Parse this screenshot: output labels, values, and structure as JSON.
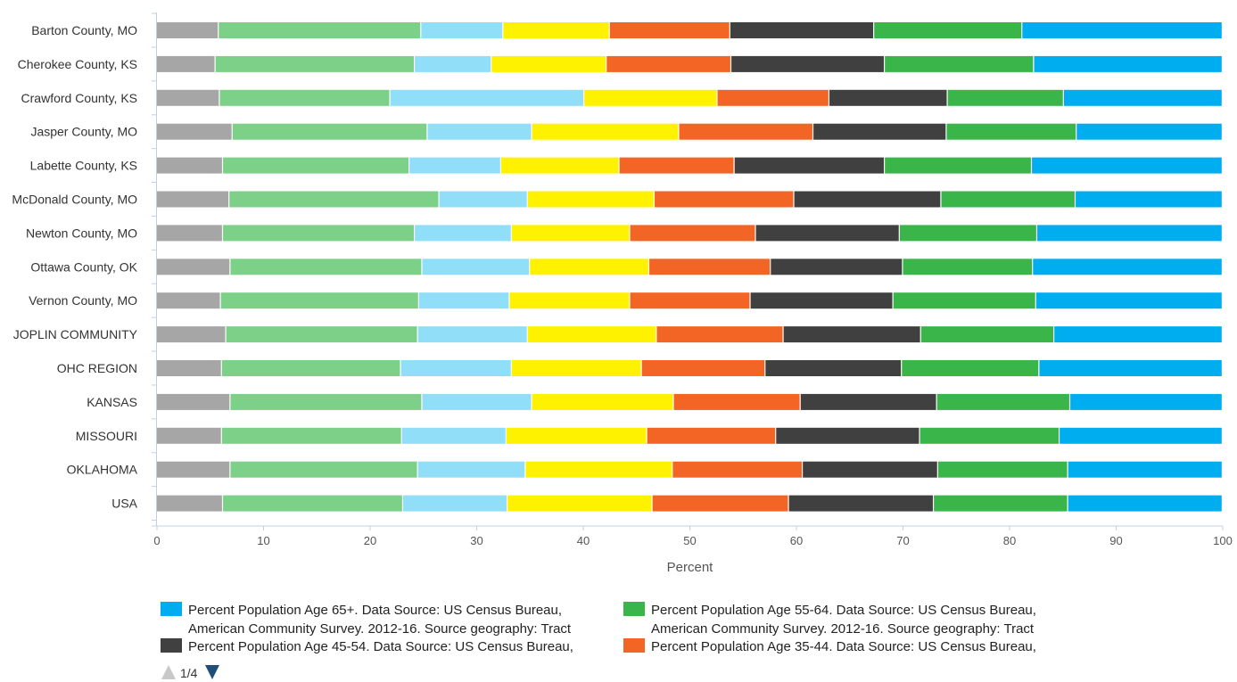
{
  "chart_data": {
    "type": "bar",
    "orientation": "horizontal",
    "stacked": true,
    "xlabel": "Percent",
    "xlim": [
      0,
      100
    ],
    "xticks": [
      "0",
      "10",
      "20",
      "30",
      "40",
      "50",
      "60",
      "70",
      "80",
      "90",
      "100"
    ],
    "grid": false,
    "categories": [
      "Barton County, MO",
      "Cherokee County, KS",
      "Crawford County, KS",
      "Jasper County, MO",
      "Labette County, KS",
      "McDonald County, MO",
      "Newton County, MO",
      "Ottawa County, OK",
      "Vernon County, MO",
      "JOPLIN COMMUNITY",
      "OHC REGION",
      "KANSAS",
      "MISSOURI",
      "OKLAHOMA",
      "USA"
    ],
    "series": [
      {
        "color": "#a6a6a6",
        "values": [
          5.8,
          5.5,
          5.9,
          7.1,
          6.2,
          6.8,
          6.2,
          6.9,
          6.0,
          6.5,
          6.1,
          6.9,
          6.1,
          6.9,
          6.2
        ]
      },
      {
        "color": "#7dd087",
        "values": [
          19.0,
          18.7,
          16.0,
          18.3,
          17.5,
          19.7,
          18.0,
          18.0,
          18.6,
          18.0,
          16.8,
          18.0,
          16.9,
          17.6,
          16.9
        ]
      },
      {
        "color": "#91def8",
        "values": [
          7.7,
          7.2,
          18.2,
          9.8,
          8.6,
          8.3,
          9.1,
          10.1,
          8.5,
          10.3,
          10.4,
          10.3,
          9.8,
          10.1,
          9.8
        ]
      },
      {
        "color": "#fff200",
        "values": [
          10.0,
          10.8,
          12.5,
          13.8,
          11.1,
          11.9,
          11.1,
          11.2,
          11.3,
          12.1,
          12.2,
          13.3,
          13.2,
          13.8,
          13.6
        ]
      },
      {
        "color": "#f26524",
        "values": [
          11.3,
          11.7,
          10.5,
          12.6,
          10.8,
          13.1,
          11.8,
          11.4,
          11.3,
          11.9,
          11.6,
          11.9,
          12.1,
          12.2,
          12.8
        ]
      },
      {
        "name": "Percent Population Age 45-54. Data Source: US Census Bureau,",
        "color": "#404040",
        "values": [
          13.5,
          14.4,
          11.1,
          12.5,
          14.1,
          13.8,
          13.5,
          12.4,
          13.4,
          12.9,
          12.8,
          12.8,
          13.5,
          12.7,
          13.6
        ]
      },
      {
        "name": "Percent Population Age 55-64. Data Source: US Census Bureau, American Community Survey. 2012-16. Source geography: Tract",
        "color": "#3ab54a",
        "values": [
          13.9,
          14.0,
          10.9,
          12.2,
          13.8,
          12.6,
          12.9,
          12.2,
          13.4,
          12.5,
          12.9,
          12.5,
          13.1,
          12.2,
          12.6
        ]
      },
      {
        "name": "Percent Population Age 65+. Data Source: US Census Bureau, American Community Survey. 2012-16. Source geography: Tract",
        "color": "#00aeef",
        "values": [
          18.8,
          17.7,
          14.9,
          13.7,
          17.9,
          13.8,
          17.4,
          17.8,
          17.5,
          15.8,
          17.2,
          14.3,
          15.3,
          14.5,
          14.5
        ]
      }
    ]
  },
  "legend": {
    "items": [
      {
        "label_lines": [
          "Percent Population Age 65+. Data Source: US Census Bureau,",
          "American Community Survey. 2012-16. Source geography: Tract"
        ],
        "color": "#00aeef"
      },
      {
        "label_lines": [
          "Percent Population Age 55-64. Data Source: US Census Bureau,",
          "American Community Survey. 2012-16. Source geography: Tract"
        ],
        "color": "#3ab54a"
      },
      {
        "label_lines": [
          "Percent Population Age 45-54. Data Source: US Census Bureau,"
        ],
        "color": "#404040"
      },
      {
        "label_lines": [
          "Percent Population Age 35-44. Data Source: US Census Bureau,"
        ],
        "color": "#f26524"
      }
    ],
    "pager": "1/4"
  }
}
